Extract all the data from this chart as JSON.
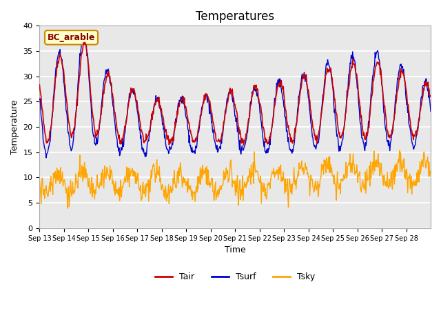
{
  "title": "Temperatures",
  "xlabel": "Time",
  "ylabel": "Temperature",
  "ylim": [
    0,
    40
  ],
  "xtick_labels": [
    "Sep 13",
    "Sep 14",
    "Sep 15",
    "Sep 16",
    "Sep 17",
    "Sep 18",
    "Sep 19",
    "Sep 20",
    "Sep 21",
    "Sep 22",
    "Sep 23",
    "Sep 24",
    "Sep 25",
    "Sep 26",
    "Sep 27",
    "Sep 28"
  ],
  "annotation_text": "BC_arable",
  "color_tair": "#cc0000",
  "color_tsurf": "#0000cc",
  "color_tsky": "#ffa500",
  "legend_labels": [
    "Tair",
    "Tsurf",
    "Tsky"
  ],
  "bg_color": "#e8e8e8",
  "fig_bg": "#ffffff",
  "grid_color": "#ffffff",
  "annotation_bg": "#ffffcc",
  "annotation_border": "#cc8800"
}
